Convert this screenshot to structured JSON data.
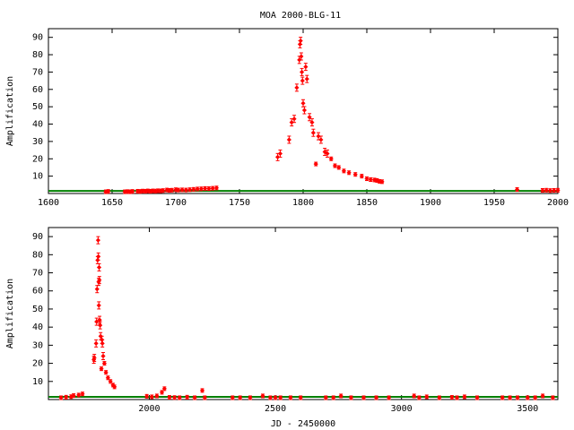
{
  "title": "MOA 2000-BLG-11",
  "colors": {
    "data": "#ff0000",
    "model": "#008000",
    "axis": "#000000"
  },
  "chart_data": [
    {
      "type": "scatter",
      "ylabel": "Amplification",
      "xlabel": "",
      "xlim": [
        1600,
        2000
      ],
      "ylim": [
        0,
        95
      ],
      "xticks": [
        1600,
        1650,
        1700,
        1750,
        1800,
        1850,
        1900,
        1950,
        2000
      ],
      "yticks": [
        10,
        20,
        30,
        40,
        50,
        60,
        70,
        80,
        90
      ],
      "grid": false,
      "series": [
        {
          "x": [
            1645,
            1647,
            1660,
            1662,
            1664,
            1666,
            1670,
            1672,
            1674,
            1676,
            1678,
            1680,
            1682,
            1684,
            1686,
            1688,
            1690,
            1693,
            1695,
            1697,
            1700,
            1702,
            1705,
            1708,
            1711,
            1714,
            1717,
            1720,
            1723,
            1726,
            1729,
            1732,
            1780,
            1782,
            1789,
            1791,
            1793,
            1795,
            1797,
            1797.5,
            1798,
            1798.5,
            1799,
            1799.5,
            1800,
            1801,
            1802,
            1803,
            1805,
            1807,
            1808,
            1810,
            1812,
            1814,
            1817,
            1819,
            1822,
            1825,
            1828,
            1832,
            1836,
            1841,
            1846,
            1850,
            1853,
            1856,
            1858,
            1860,
            1862,
            1968,
            1988,
            1991,
            1994,
            1997,
            2000
          ],
          "y": [
            1,
            1.2,
            1,
            1.1,
            1,
            1.2,
            1.3,
            1.2,
            1.4,
            1.3,
            1.5,
            1.3,
            1.5,
            1.4,
            1.6,
            1.5,
            1.7,
            2.0,
            1.8,
            1.9,
            2.2,
            2.0,
            2.1,
            2.0,
            2.2,
            2.4,
            2.6,
            2.7,
            2.9,
            2.8,
            3.0,
            3.2,
            21,
            23,
            31,
            41,
            43,
            61,
            77,
            86,
            88,
            79,
            70,
            65,
            52,
            48,
            73,
            66,
            44,
            41,
            35,
            17,
            33,
            31,
            24,
            23,
            20,
            16,
            15,
            13,
            12,
            11,
            10,
            8.5,
            8,
            7.8,
            7.5,
            7,
            6.8,
            2.3,
            1.8,
            1.9,
            1.7,
            1.8,
            1.9
          ]
        }
      ]
    },
    {
      "type": "scatter",
      "ylabel": "Amplification",
      "xlabel": "JD - 2450000",
      "xlim": [
        1600,
        3620
      ],
      "ylim": [
        0,
        95
      ],
      "xticks": [
        2000,
        2500,
        3000,
        3500
      ],
      "yticks": [
        10,
        20,
        30,
        40,
        50,
        60,
        70,
        80,
        90
      ],
      "grid": false,
      "series": [
        {
          "x": [
            1650,
            1670,
            1690,
            1700,
            1720,
            1735,
            1780,
            1782,
            1789,
            1791,
            1793,
            1795,
            1797,
            1798,
            1799,
            1800,
            1801,
            1802,
            1803,
            1805,
            1807,
            1810,
            1812,
            1814,
            1817,
            1822,
            1828,
            1836,
            1846,
            1856,
            1862,
            1990,
            2010,
            2030,
            2050,
            2060,
            2080,
            2100,
            2120,
            2150,
            2180,
            2210,
            2220,
            2330,
            2360,
            2400,
            2450,
            2480,
            2500,
            2520,
            2560,
            2600,
            2700,
            2730,
            2760,
            2800,
            2850,
            2900,
            2950,
            3050,
            3070,
            3100,
            3150,
            3200,
            3220,
            3250,
            3300,
            3400,
            3430,
            3460,
            3500,
            3530,
            3560,
            3600
          ],
          "y": [
            1,
            1.3,
            1.6,
            2.2,
            2.5,
            3.1,
            22,
            23,
            31,
            43,
            61,
            77,
            88,
            79,
            65,
            52,
            73,
            66,
            44,
            41,
            35,
            17,
            33,
            31,
            24,
            20,
            15,
            12,
            10,
            8,
            7,
            1.8,
            1.5,
            2,
            4,
            6,
            1.2,
            1.1,
            1,
            1.3,
            1,
            5,
            1,
            1,
            1,
            1,
            2,
            1,
            1,
            1,
            1,
            1,
            1,
            1,
            2,
            1,
            1,
            1,
            1,
            2,
            1,
            1.5,
            1,
            1.2,
            1,
            1.5,
            1,
            1,
            1,
            1,
            1,
            1,
            2,
            1
          ]
        }
      ]
    }
  ]
}
